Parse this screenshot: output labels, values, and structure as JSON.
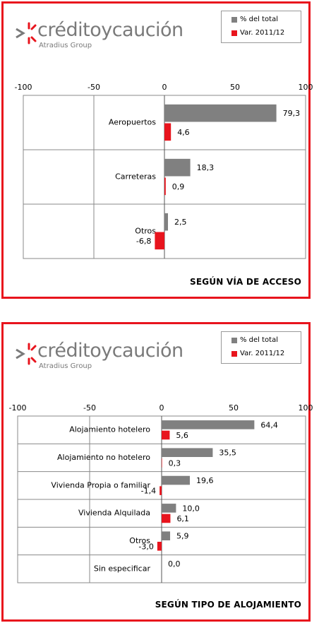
{
  "colors": {
    "border": "#e8141d",
    "bar_total": "#808080",
    "bar_var": "#e8141d",
    "logo_text": "#7a7a7a"
  },
  "logo": {
    "brand": "créditoycaución",
    "sub": "Atradius Group"
  },
  "legend": {
    "items": [
      {
        "label": "% del total",
        "color": "#808080"
      },
      {
        "label": "Var. 2011/12",
        "color": "#e8141d"
      }
    ]
  },
  "chart_data": [
    {
      "type": "bar",
      "orientation": "horizontal",
      "title": "SEGÚN VÍA DE ACCESO",
      "categories": [
        "Aeropuertos",
        "Carreteras",
        "Otros"
      ],
      "series": [
        {
          "name": "% del total",
          "values": [
            79.3,
            18.3,
            2.5
          ],
          "labels": [
            "79,3",
            "18,3",
            "2,5"
          ]
        },
        {
          "name": "Var. 2011/12",
          "values": [
            4.6,
            0.9,
            -6.8
          ],
          "labels": [
            "4,6",
            "0,9",
            "-6,8"
          ]
        }
      ],
      "xlim": [
        -100,
        100
      ],
      "ticks": [
        "-100",
        "-50",
        "0",
        "50",
        "100"
      ],
      "grid": true
    },
    {
      "type": "bar",
      "orientation": "horizontal",
      "title": "SEGÚN TIPO DE ALOJAMIENTO",
      "categories": [
        "Alojamiento hotelero",
        "Alojamiento no hotelero",
        "Vivienda Propia o familiar",
        "Vivienda Alquilada",
        "Otros",
        "Sin especificar"
      ],
      "series": [
        {
          "name": "% del total",
          "values": [
            64.4,
            35.5,
            19.6,
            10.0,
            5.9,
            0.0
          ],
          "labels": [
            "64,4",
            "35,5",
            "19,6",
            "10,0",
            "5,9",
            "0,0"
          ]
        },
        {
          "name": "Var. 2011/12",
          "values": [
            5.6,
            0.3,
            -1.4,
            6.1,
            -3.0,
            null
          ],
          "labels": [
            "5,6",
            "0,3",
            "-1,4",
            "6,1",
            "-3,0",
            ""
          ]
        }
      ],
      "xlim": [
        -100,
        100
      ],
      "ticks": [
        "-100",
        "-50",
        "0",
        "50",
        "100"
      ],
      "grid": true
    }
  ]
}
